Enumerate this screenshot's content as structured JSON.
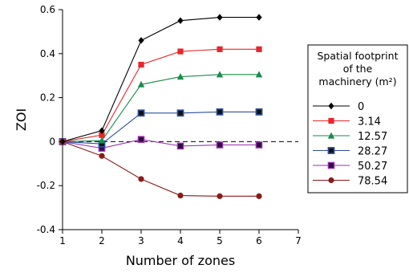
{
  "chart_data": {
    "type": "line",
    "xlabel": "Number of zones",
    "ylabel": "ZOI",
    "xlim": [
      1,
      7
    ],
    "ylim": [
      -0.4,
      0.6
    ],
    "xticks": [
      1,
      2,
      3,
      4,
      5,
      6,
      7
    ],
    "yticks": [
      0.6,
      0.4,
      0.2,
      0,
      -0.2,
      -0.4
    ],
    "ytick_labels": [
      "0.6",
      "0.4",
      "0.2",
      "0",
      "-0.2",
      "-0.4"
    ],
    "reference_line": {
      "y": 0,
      "style": "dashed"
    },
    "grid": false,
    "legend": {
      "placement": "right",
      "title_lines": [
        "Spatial footprint",
        "of the",
        "machinery (m²)"
      ]
    },
    "x": [
      1,
      2,
      3,
      4,
      5,
      6
    ],
    "series": [
      {
        "name": "0",
        "color": "#000000",
        "marker": "diamond",
        "values": [
          0,
          0.05,
          0.46,
          0.55,
          0.565,
          0.565
        ]
      },
      {
        "name": "3.14",
        "color": "#e8262a",
        "marker": "square",
        "values": [
          0,
          0.03,
          0.35,
          0.41,
          0.42,
          0.42
        ]
      },
      {
        "name": "12.57",
        "color": "#1a8a4a",
        "marker": "triangle",
        "values": [
          0,
          0.005,
          0.26,
          0.295,
          0.305,
          0.305
        ]
      },
      {
        "name": "28.27",
        "color": "#2c4f9e",
        "marker": "square-open",
        "values": [
          0,
          -0.01,
          0.13,
          0.13,
          0.135,
          0.135
        ]
      },
      {
        "name": "50.27",
        "color": "#9b30b0",
        "marker": "square-dark",
        "values": [
          0,
          -0.03,
          0.01,
          -0.02,
          -0.015,
          -0.015
        ]
      },
      {
        "name": "78.54",
        "color": "#8b1a1a",
        "marker": "circle",
        "values": [
          0,
          -0.065,
          -0.17,
          -0.245,
          -0.248,
          -0.248
        ]
      }
    ]
  }
}
